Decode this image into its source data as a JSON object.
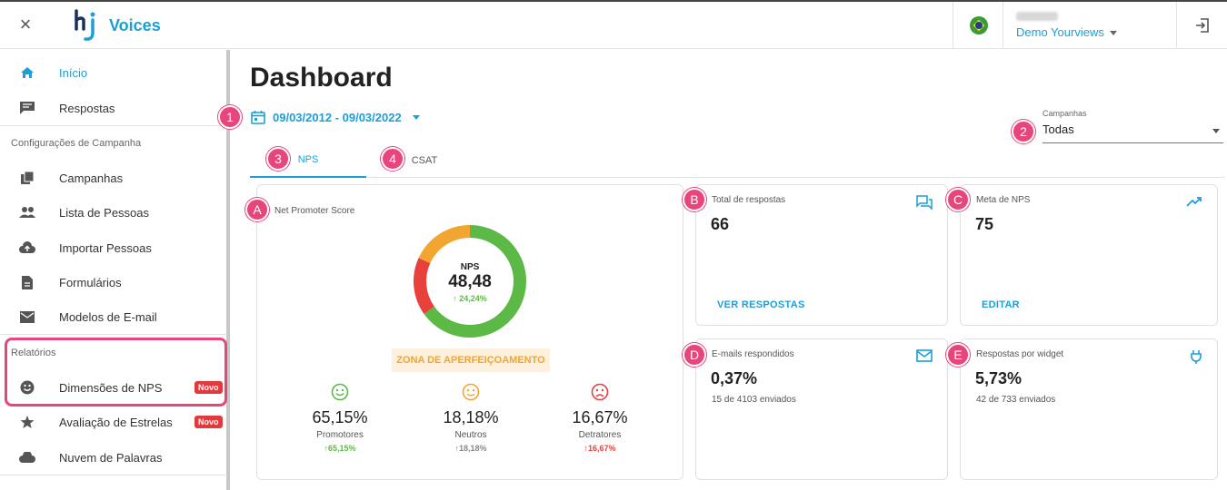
{
  "topbar": {
    "close_label": "×",
    "app_name": "Voices",
    "user_name": "Demo Yourviews"
  },
  "sidebar": {
    "items": [
      {
        "label": "Início",
        "icon": "home-icon"
      },
      {
        "label": "Respostas",
        "icon": "chat-icon"
      }
    ],
    "section_config": "Configurações de Campanha",
    "config_items": [
      {
        "label": "Campanhas",
        "icon": "folders-icon"
      },
      {
        "label": "Lista de Pessoas",
        "icon": "people-icon"
      },
      {
        "label": "Importar Pessoas",
        "icon": "cloud-upload-icon"
      },
      {
        "label": "Formulários",
        "icon": "document-icon"
      },
      {
        "label": "Modelos de E-mail",
        "icon": "mail-icon"
      }
    ],
    "section_reports": "Relatórios",
    "report_items": [
      {
        "label": "Dimensões de NPS",
        "icon": "smiley-icon",
        "badge": "Novo"
      },
      {
        "label": "Avaliação de Estrelas",
        "icon": "star-icon",
        "badge": "Novo"
      },
      {
        "label": "Nuvem de Palavras",
        "icon": "cloud-icon"
      }
    ]
  },
  "main": {
    "title": "Dashboard",
    "date_range": "09/03/2012 - 09/03/2022",
    "campaigns_label": "Campanhas",
    "campaigns_value": "Todas",
    "tabs": [
      {
        "label": "NPS"
      },
      {
        "label": "CSAT"
      }
    ],
    "callouts": [
      "1",
      "2",
      "3",
      "4",
      "A",
      "B",
      "C",
      "D",
      "E"
    ]
  },
  "nps_card": {
    "title": "Net Promoter Score",
    "label": "NPS",
    "value": "48,48",
    "change": "24,24%",
    "zone": "ZONA DE APERFEIÇOAMENTO",
    "donut": {
      "promoters_pct": 65.15,
      "neutrals_pct": 18.18,
      "detractors_pct": 16.67
    },
    "colors": {
      "promoters": "#5cb946",
      "neutrals": "#f3a531",
      "detractors": "#e8403a"
    },
    "stats": [
      {
        "pct": "65,15%",
        "name": "Promotores",
        "change": "65,15%",
        "icon": "happy-face-icon"
      },
      {
        "pct": "18,18%",
        "name": "Neutros",
        "change": "18,18%",
        "icon": "neutral-face-icon"
      },
      {
        "pct": "16,67%",
        "name": "Detratores",
        "change": "16,67%",
        "icon": "sad-face-icon"
      }
    ]
  },
  "cards": {
    "total": {
      "title": "Total de respostas",
      "value": "66",
      "link": "VER RESPOSTAS",
      "icon": "chat-bubbles-icon"
    },
    "goal": {
      "title": "Meta de NPS",
      "value": "75",
      "link": "EDITAR",
      "icon": "trending-up-icon"
    },
    "emails": {
      "title": "E-mails respondidos",
      "value": "0,37%",
      "sub": "15 de 4103 enviados",
      "icon": "mail-icon"
    },
    "widget": {
      "title": "Respostas por widget",
      "value": "5,73%",
      "sub": "42 de 733 enviados",
      "icon": "plug-icon"
    }
  }
}
